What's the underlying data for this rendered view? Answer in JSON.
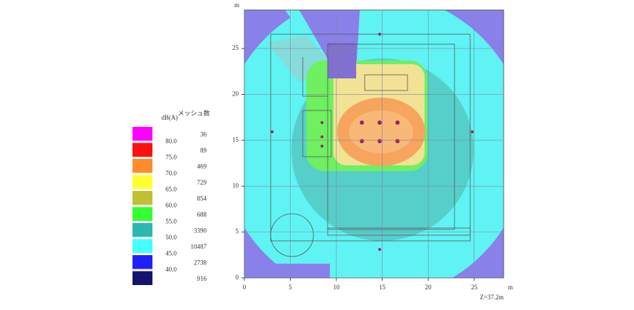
{
  "legend": {
    "level_title": "dB(A)",
    "count_title": "メッシュ数",
    "items": [
      {
        "color": "#ff00ff",
        "level": null,
        "count": "36"
      },
      {
        "color": "#ff1010",
        "level": "80.0",
        "count": "89"
      },
      {
        "color": "#ff8c2a",
        "level": "75.0",
        "count": "469"
      },
      {
        "color": "#ffff33",
        "level": "70.0",
        "count": "729"
      },
      {
        "color": "#c0c030",
        "level": "65.0",
        "count": "854"
      },
      {
        "color": "#33ff33",
        "level": "60.0",
        "count": "688"
      },
      {
        "color": "#2ab8b0",
        "level": "55.0",
        "count": "3390"
      },
      {
        "color": "#44ffff",
        "level": "50.0",
        "count": "10487"
      },
      {
        "color": "#2020ff",
        "level": "45.0",
        "count": "2738"
      },
      {
        "color": "#141470",
        "level": "40.0",
        "count": "916"
      }
    ]
  },
  "plot": {
    "xlim": [
      0,
      28.2
    ],
    "ylim": [
      0,
      29.2
    ],
    "xticks": [
      0,
      5,
      10,
      15,
      20,
      25
    ],
    "yticks": [
      0,
      5,
      10,
      15,
      20,
      25
    ],
    "x_unit": "m",
    "y_unit": "m",
    "note": "Z=37.2m"
  }
}
